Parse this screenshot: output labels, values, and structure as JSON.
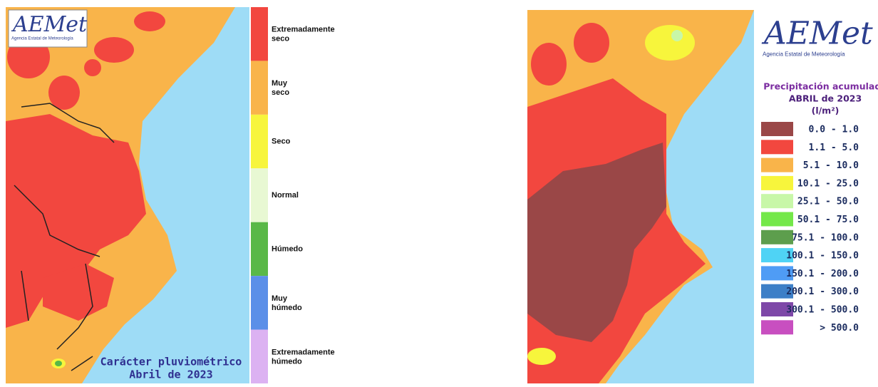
{
  "left_panel": {
    "logo": {
      "name": "AEMet",
      "subtitle": "Agencia Estatal de Meteorología"
    },
    "title": [
      "Carácter pluviométrico",
      "Abril de 2023"
    ],
    "legend": [
      {
        "label": "Extremadamente seco",
        "color": "#f2473f"
      },
      {
        "label": "Muy seco",
        "color": "#f9b44a"
      },
      {
        "label": "Seco",
        "color": "#f7f53c"
      },
      {
        "label": "Normal",
        "color": "#e8f8d3"
      },
      {
        "label": "Húmedo",
        "color": "#59b847"
      },
      {
        "label": "Muy húmedo",
        "color": "#5b8fe8"
      },
      {
        "label": "Extremadamente húmedo",
        "color": "#dcb2f2"
      }
    ]
  },
  "right_panel": {
    "logo": {
      "name": "AEMet",
      "subtitle": "Agencia Estatal de Meteorología"
    },
    "title": [
      "Precipitación acumulada",
      "ABRIL de 2023",
      "(l/m²)"
    ],
    "legend": [
      {
        "label": "0.0 - 1.0",
        "color": "#9a4747"
      },
      {
        "label": "1.1 - 5.0",
        "color": "#f2473f"
      },
      {
        "label": "5.1 - 10.0",
        "color": "#f9b44a"
      },
      {
        "label": "10.1 - 25.0",
        "color": "#f7f53c"
      },
      {
        "label": "25.1 - 50.0",
        "color": "#c8f7a8"
      },
      {
        "label": "50.1 - 75.0",
        "color": "#74e849"
      },
      {
        "label": "75.1 - 100.0",
        "color": "#5d9e4d"
      },
      {
        "label": "100.1 - 150.0",
        "color": "#4fd3f5"
      },
      {
        "label": "150.1 - 200.0",
        "color": "#4f9cf5"
      },
      {
        "label": "200.1 - 300.0",
        "color": "#3d7fc7"
      },
      {
        "label": "300.1 - 500.0",
        "color": "#7e48a8"
      },
      {
        "label": "> 500.0",
        "color": "#c84fc0"
      }
    ]
  }
}
